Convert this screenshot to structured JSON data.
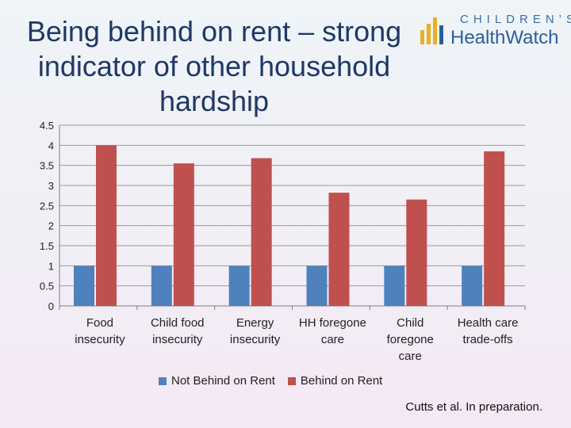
{
  "title": "Being behind on rent – strong\nindicator of other household\nhardship",
  "logo": {
    "top_text": "CHILDREN’S",
    "bottom_text": "HealthWatch",
    "colors": {
      "blue": "#2e5e9a",
      "yellow": "#e8b020"
    }
  },
  "citation": "Cutts et al. In preparation.",
  "colors": {
    "not_behind": "#4f81bd",
    "behind": "#c0504d"
  },
  "chart_data": {
    "type": "bar",
    "categories": [
      [
        "Food",
        "insecurity"
      ],
      [
        "Child food",
        "insecurity"
      ],
      [
        "Energy",
        "insecurity"
      ],
      [
        "HH foregone",
        "care"
      ],
      [
        "Child",
        "foregone",
        "care"
      ],
      [
        "Health care",
        "trade-offs"
      ]
    ],
    "series": [
      {
        "name": "Not Behind on Rent",
        "values": [
          1,
          1,
          1,
          1,
          1,
          1
        ]
      },
      {
        "name": "Behind on Rent",
        "values": [
          4.0,
          3.55,
          3.68,
          2.82,
          2.65,
          3.85
        ]
      }
    ],
    "yticks": [
      "0",
      "0.5",
      "1",
      "1.5",
      "2",
      "2.5",
      "3",
      "3.5",
      "4",
      "4.5"
    ],
    "ylim": [
      0,
      4.5
    ],
    "grid": true,
    "legend_position": "bottom"
  }
}
